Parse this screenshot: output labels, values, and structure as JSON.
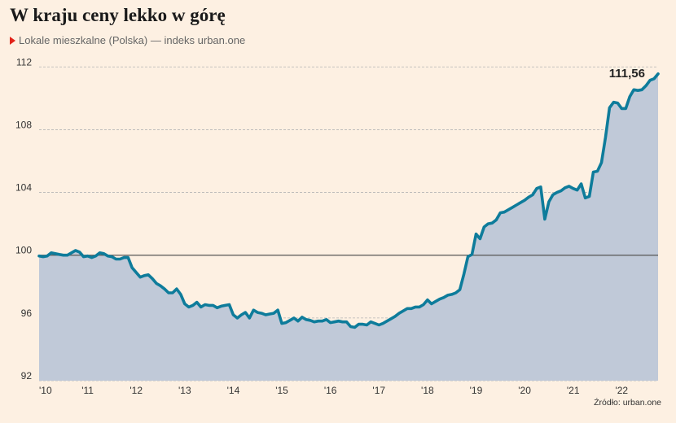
{
  "title": "W kraju ceny lekko w górę",
  "subtitle": "Lokale mieszkalne (Polska) — indeks urban.one",
  "source": "Źródło: urban.one",
  "colors": {
    "background": "#fdf0e2",
    "line": "#0e7c9b",
    "area": "#c0c9d8",
    "marker": "#e2231a",
    "reference_line": "#555555",
    "grid": "#b5b5b5"
  },
  "chart_data": {
    "type": "area",
    "x_range": [
      "2010-01",
      "2022-10"
    ],
    "ylim": [
      92,
      113
    ],
    "yticks": [
      92,
      96,
      100,
      104,
      108,
      112
    ],
    "ytick_labels": [
      "92",
      "96",
      "100",
      "104",
      "108",
      "112"
    ],
    "xtick_labels": [
      "'10",
      "'11",
      "'12",
      "'13",
      "'14",
      "'15",
      "'16",
      "'17",
      "'18",
      "'19",
      "'20",
      "'21",
      "'22"
    ],
    "grid": true,
    "reference_value": 100,
    "end_label": "111,56",
    "series": [
      {
        "x": [
          "2010-01",
          "2010-02",
          "2010-03",
          "2010-04",
          "2010-05",
          "2010-06",
          "2010-07",
          "2010-08",
          "2010-09",
          "2010-10",
          "2010-11",
          "2010-12",
          "2011-01",
          "2011-02",
          "2011-03",
          "2011-04",
          "2011-05",
          "2011-06",
          "2011-07",
          "2011-08",
          "2011-09",
          "2011-10",
          "2011-11",
          "2011-12",
          "2012-01",
          "2012-02",
          "2012-03",
          "2012-04",
          "2012-05",
          "2012-06",
          "2012-07",
          "2012-08",
          "2012-09",
          "2012-10",
          "2012-11",
          "2012-12",
          "2013-01",
          "2013-02",
          "2013-03",
          "2013-04",
          "2013-05",
          "2013-06",
          "2013-07",
          "2013-08",
          "2013-09",
          "2013-10",
          "2013-11",
          "2013-12",
          "2014-01",
          "2014-02",
          "2014-03",
          "2014-04",
          "2014-05",
          "2014-06",
          "2014-07",
          "2014-08",
          "2014-09",
          "2014-10",
          "2014-11",
          "2014-12",
          "2015-01",
          "2015-02",
          "2015-03",
          "2015-04",
          "2015-05",
          "2015-06",
          "2015-07",
          "2015-08",
          "2015-09",
          "2015-10",
          "2015-11",
          "2015-12",
          "2016-01",
          "2016-02",
          "2016-03",
          "2016-04",
          "2016-05",
          "2016-06",
          "2016-07",
          "2016-08",
          "2016-09",
          "2016-10",
          "2016-11",
          "2016-12",
          "2017-01",
          "2017-02",
          "2017-03",
          "2017-04",
          "2017-05",
          "2017-06",
          "2017-07",
          "2017-08",
          "2017-09",
          "2017-10",
          "2017-11",
          "2017-12",
          "2018-01",
          "2018-02",
          "2018-03",
          "2018-04",
          "2018-05",
          "2018-06",
          "2018-07",
          "2018-08",
          "2018-09",
          "2018-10",
          "2018-11",
          "2018-12",
          "2019-01",
          "2019-02",
          "2019-03",
          "2019-04",
          "2019-05",
          "2019-06",
          "2019-07",
          "2019-08",
          "2019-09",
          "2019-10",
          "2019-11",
          "2019-12",
          "2020-01",
          "2020-02",
          "2020-03",
          "2020-04",
          "2020-05",
          "2020-06",
          "2020-07",
          "2020-08",
          "2020-09",
          "2020-10",
          "2020-11",
          "2020-12",
          "2021-01",
          "2021-02",
          "2021-03",
          "2021-04",
          "2021-05",
          "2021-06",
          "2021-07",
          "2021-08",
          "2021-09",
          "2021-10",
          "2021-11",
          "2021-12",
          "2022-01",
          "2022-02",
          "2022-03",
          "2022-04",
          "2022-05",
          "2022-06",
          "2022-07",
          "2022-08",
          "2022-09",
          "2022-10"
        ],
        "values": [
          99.95,
          99.9,
          99.95,
          100.15,
          100.1,
          100.05,
          100.0,
          100.0,
          100.15,
          100.3,
          100.2,
          99.9,
          99.95,
          99.85,
          99.95,
          100.15,
          100.1,
          99.95,
          99.9,
          99.75,
          99.75,
          99.85,
          99.85,
          99.2,
          98.9,
          98.6,
          98.7,
          98.75,
          98.5,
          98.2,
          98.05,
          97.85,
          97.6,
          97.6,
          97.85,
          97.5,
          96.9,
          96.7,
          96.8,
          97.0,
          96.7,
          96.85,
          96.8,
          96.8,
          96.65,
          96.75,
          96.8,
          96.85,
          96.2,
          96.0,
          96.2,
          96.35,
          96.0,
          96.5,
          96.35,
          96.3,
          96.2,
          96.25,
          96.3,
          96.5,
          95.65,
          95.7,
          95.85,
          96.0,
          95.8,
          96.05,
          95.9,
          95.85,
          95.75,
          95.8,
          95.8,
          95.9,
          95.7,
          95.75,
          95.8,
          95.75,
          95.75,
          95.45,
          95.4,
          95.6,
          95.6,
          95.55,
          95.75,
          95.65,
          95.55,
          95.65,
          95.8,
          95.95,
          96.1,
          96.3,
          96.45,
          96.6,
          96.6,
          96.7,
          96.7,
          96.85,
          97.15,
          96.9,
          97.05,
          97.2,
          97.3,
          97.45,
          97.5,
          97.6,
          97.8,
          98.8,
          99.9,
          100.05,
          101.35,
          101.05,
          101.8,
          102.0,
          102.05,
          102.25,
          102.7,
          102.75,
          102.9,
          103.05,
          103.2,
          103.35,
          103.5,
          103.7,
          103.85,
          104.25,
          104.35,
          102.3,
          103.4,
          103.85,
          104.0,
          104.1,
          104.3,
          104.4,
          104.25,
          104.15,
          104.55,
          103.65,
          103.75,
          105.3,
          105.35,
          105.9,
          107.5,
          109.4,
          109.75,
          109.7,
          109.35,
          109.35,
          110.1,
          110.55,
          110.5,
          110.55,
          110.8,
          111.15,
          111.25,
          111.56
        ]
      }
    ]
  }
}
